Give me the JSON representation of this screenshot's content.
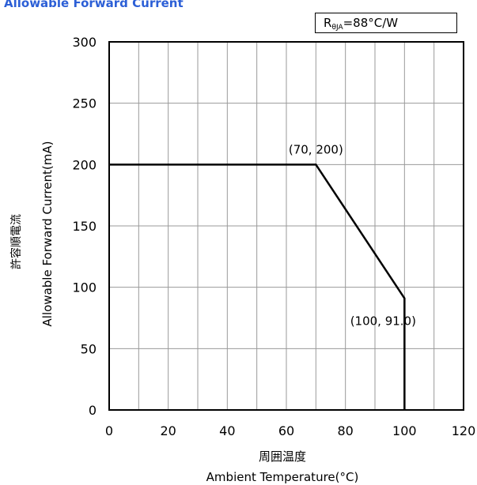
{
  "chart_title": "Allowable Forward Current",
  "thermal_resistance": {
    "symbol": "R",
    "subscript": "θJA",
    "value_text": "=88°C/W"
  },
  "chart_data": {
    "type": "line",
    "title": "Allowable Forward Current",
    "xlabel_ja": "周囲温度",
    "xlabel": "Ambient Temperature(°C)",
    "ylabel_ja": "許容順電流",
    "ylabel": "Allowable Forward Current(mA)",
    "xlim": [
      0,
      120
    ],
    "ylim": [
      0,
      300
    ],
    "x_ticks": [
      0,
      20,
      40,
      60,
      80,
      100,
      120
    ],
    "y_ticks": [
      0,
      50,
      100,
      150,
      200,
      250,
      300
    ],
    "x_minor_step": 10,
    "grid": true,
    "series": [
      {
        "points": [
          [
            0,
            200
          ],
          [
            70,
            200
          ],
          [
            100,
            91.0
          ],
          [
            100,
            0
          ]
        ],
        "color": "#000000"
      }
    ],
    "annotations": [
      {
        "text": "(70, 200)",
        "x": 70,
        "y": 200
      },
      {
        "text": "(100, 91.0)",
        "x": 100,
        "y": 91.0
      }
    ]
  }
}
